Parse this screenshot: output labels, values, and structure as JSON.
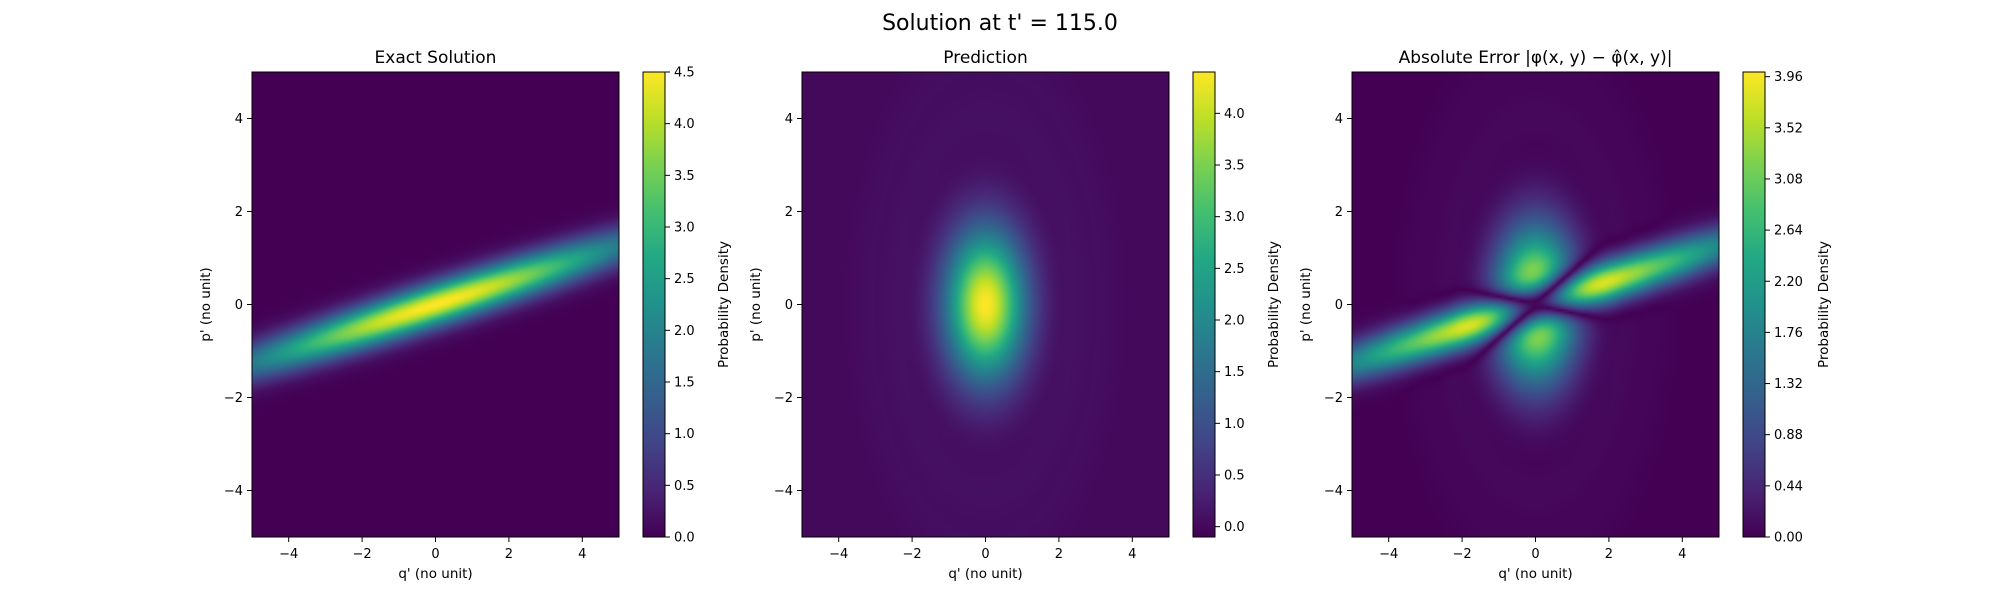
{
  "figure_title": "Solution at t' = 115.0",
  "colormap": "viridis",
  "chart_data": [
    {
      "type": "heatmap",
      "title": "Exact Solution",
      "xlabel": "q' (no unit)",
      "ylabel": "p' (no unit)",
      "xlim": [
        -5,
        5
      ],
      "ylim": [
        -5,
        5
      ],
      "xticks": [
        -4,
        -2,
        0,
        2,
        4
      ],
      "yticks": [
        -4,
        -2,
        0,
        2,
        4
      ],
      "xtick_labels": [
        "−4",
        "−2",
        "0",
        "2",
        "4"
      ],
      "ytick_labels": [
        "−4",
        "−2",
        "0",
        "2",
        "4"
      ],
      "colorbar_label": "Probability Density",
      "colorbar_range": [
        0,
        4.5
      ],
      "colorbar_ticks": [
        0.0,
        0.5,
        1.0,
        1.5,
        2.0,
        2.5,
        3.0,
        3.5,
        4.0,
        4.5
      ],
      "colorbar_tick_labels": [
        "0.0",
        "0.5",
        "1.0",
        "1.5",
        "2.0",
        "2.5",
        "3.0",
        "3.5",
        "4.0",
        "4.5"
      ],
      "field": "tilted Gaussian ridge along p = 0.25 q, peak 4.5 at origin"
    },
    {
      "type": "heatmap",
      "title": "Prediction",
      "xlabel": "q' (no unit)",
      "ylabel": "p' (no unit)",
      "xlim": [
        -5,
        5
      ],
      "ylim": [
        -5,
        5
      ],
      "xticks": [
        -4,
        -2,
        0,
        2,
        4
      ],
      "yticks": [
        -4,
        -2,
        0,
        2,
        4
      ],
      "xtick_labels": [
        "−4",
        "−2",
        "0",
        "2",
        "4"
      ],
      "ytick_labels": [
        "−4",
        "−2",
        "0",
        "2",
        "4"
      ],
      "colorbar_label": "Probability Density",
      "colorbar_range": [
        -0.1,
        4.4
      ],
      "colorbar_ticks": [
        0.0,
        0.5,
        1.0,
        1.5,
        2.0,
        2.5,
        3.0,
        3.5,
        4.0
      ],
      "colorbar_tick_labels": [
        "0.0",
        "0.5",
        "1.0",
        "1.5",
        "2.0",
        "2.5",
        "3.0",
        "3.5",
        "4.0"
      ],
      "field": "vertical elliptical Gaussian centred at origin, peak about 4.4, with faint outer rings"
    },
    {
      "type": "heatmap",
      "title": "Absolute Error |φ(x, y) − φ̂(x, y)|",
      "xlabel": "q' (no unit)",
      "ylabel": "p' (no unit)",
      "xlim": [
        -5,
        5
      ],
      "ylim": [
        -5,
        5
      ],
      "xticks": [
        -4,
        -2,
        0,
        2,
        4
      ],
      "yticks": [
        -4,
        -2,
        0,
        2,
        4
      ],
      "xtick_labels": [
        "−4",
        "−2",
        "0",
        "2",
        "4"
      ],
      "ytick_labels": [
        "−4",
        "−2",
        "0",
        "2",
        "4"
      ],
      "colorbar_label": "Probability Density",
      "colorbar_range": [
        0,
        4.0
      ],
      "colorbar_ticks": [
        0.0,
        0.44,
        0.88,
        1.32,
        1.76,
        2.2,
        2.64,
        3.08,
        3.52,
        3.96
      ],
      "colorbar_tick_labels": [
        "0.00",
        "0.44",
        "0.88",
        "1.32",
        "1.76",
        "2.20",
        "2.64",
        "3.08",
        "3.52",
        "3.96"
      ],
      "field": "absolute difference of exact and predicted fields"
    }
  ]
}
